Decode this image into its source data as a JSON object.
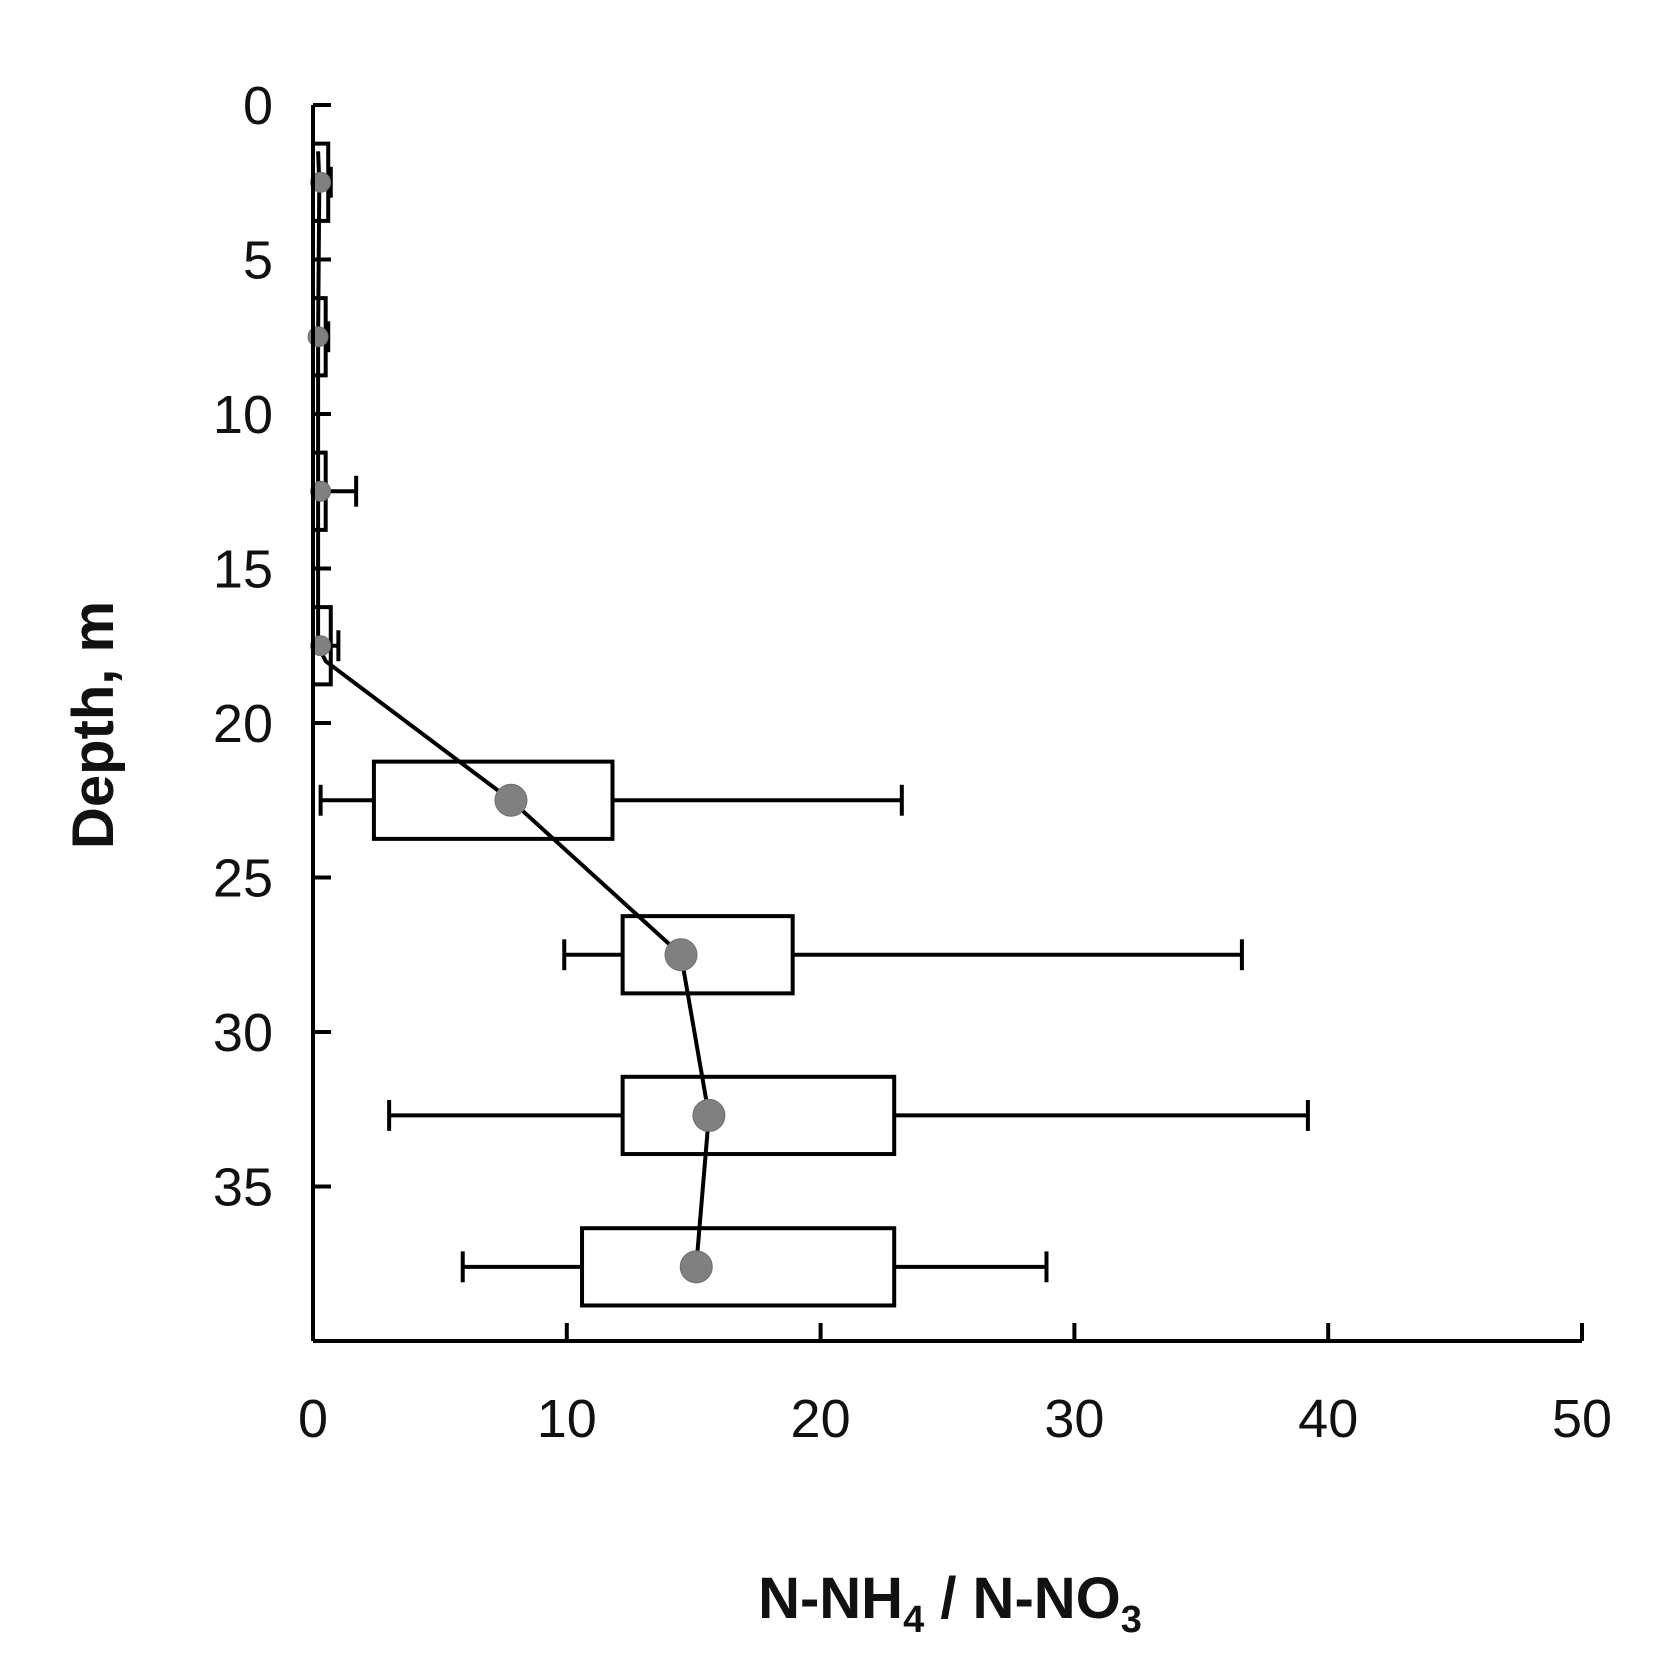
{
  "chart_data": {
    "type": "box",
    "orientation": "horizontal",
    "xlabel": {
      "main1": "N-NH",
      "sub1": "4",
      "main2": " / N-NO",
      "sub2": "3"
    },
    "ylabel": "Depth, m",
    "xlim": [
      0,
      50
    ],
    "ylim": [
      0,
      40
    ],
    "y_inverted": true,
    "grid": false,
    "legend": "none",
    "x_ticks": [
      "0",
      "10",
      "20",
      "30",
      "40",
      "50"
    ],
    "y_ticks": [
      "0",
      "5",
      "10",
      "15",
      "20",
      "25",
      "30",
      "35"
    ],
    "colors": {
      "axis": "#000000",
      "box_fill": "#ffffff",
      "marker": "#808080",
      "line": "#000000"
    },
    "mean_line": [
      {
        "depth": 1.5,
        "value": 0.2
      },
      {
        "depth": 2.5,
        "value": 0.25
      },
      {
        "depth": 7.5,
        "value": 0.2
      },
      {
        "depth": 12.5,
        "value": 0.2
      },
      {
        "depth": 17.5,
        "value": 0.2
      },
      {
        "depth": 18.0,
        "value": 0.5
      },
      {
        "depth": 22.5,
        "value": 7.8
      },
      {
        "depth": 27.5,
        "value": 14.5
      },
      {
        "depth": 32.7,
        "value": 15.6
      },
      {
        "depth": 37.6,
        "value": 15.1
      }
    ],
    "series": [
      {
        "depth": 2.5,
        "mean": 0.3,
        "whisker_low": 0.0,
        "q1": 0.0,
        "q3": 0.6,
        "whisker_high": 0.7
      },
      {
        "depth": 7.5,
        "mean": 0.2,
        "whisker_low": 0.0,
        "q1": 0.0,
        "q3": 0.5,
        "whisker_high": 0.6
      },
      {
        "depth": 12.5,
        "mean": 0.3,
        "whisker_low": 0.0,
        "q1": 0.0,
        "q3": 0.5,
        "whisker_high": 1.7
      },
      {
        "depth": 17.5,
        "mean": 0.3,
        "whisker_low": 0.0,
        "q1": 0.0,
        "q3": 0.7,
        "whisker_high": 1.0
      },
      {
        "depth": 22.5,
        "mean": 7.8,
        "whisker_low": 0.3,
        "q1": 2.4,
        "q3": 11.8,
        "whisker_high": 23.2
      },
      {
        "depth": 27.5,
        "mean": 14.5,
        "whisker_low": 9.9,
        "q1": 12.2,
        "q3": 18.9,
        "whisker_high": 36.6
      },
      {
        "depth": 32.7,
        "mean": 15.6,
        "whisker_low": 3.0,
        "q1": 12.2,
        "q3": 22.9,
        "whisker_high": 39.2
      },
      {
        "depth": 37.6,
        "mean": 15.1,
        "whisker_low": 5.9,
        "q1": 10.6,
        "q3": 22.9,
        "whisker_high": 28.9
      }
    ]
  }
}
